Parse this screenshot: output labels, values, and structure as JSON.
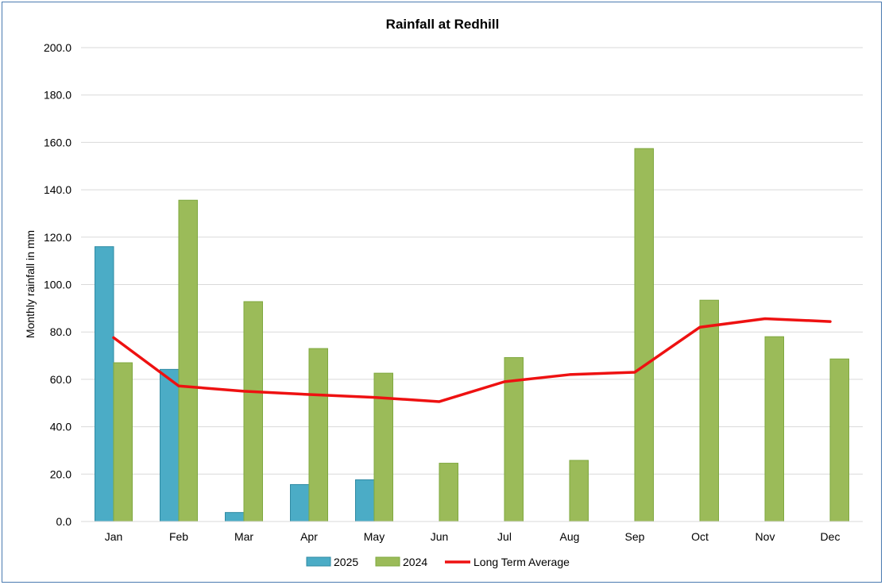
{
  "chart_data": {
    "type": "bar",
    "title": "Rainfall at Redhill",
    "xlabel": "",
    "ylabel": "Monthly rainfall in mm",
    "ylim": [
      0,
      200
    ],
    "yticks": [
      "0.0",
      "20.0",
      "40.0",
      "60.0",
      "80.0",
      "100.0",
      "120.0",
      "140.0",
      "160.0",
      "180.0",
      "200.0"
    ],
    "categories": [
      "Jan",
      "Feb",
      "Mar",
      "Apr",
      "May",
      "Jun",
      "Jul",
      "Aug",
      "Sep",
      "Oct",
      "Nov",
      "Dec"
    ],
    "series": [
      {
        "name": "2025",
        "type": "bar",
        "color": "#4bacc6",
        "values": [
          116.0,
          64.2,
          3.8,
          15.6,
          17.6,
          null,
          null,
          null,
          null,
          null,
          null,
          null
        ]
      },
      {
        "name": "2024",
        "type": "bar",
        "color": "#9bbb59",
        "values": [
          67.0,
          135.6,
          92.8,
          73.0,
          62.6,
          24.6,
          69.2,
          25.8,
          157.4,
          93.4,
          78.0,
          68.6
        ]
      },
      {
        "name": "Long Term Average",
        "type": "line",
        "color": "#ee1111",
        "values": [
          77.6,
          57.2,
          55.0,
          53.6,
          52.4,
          50.6,
          59.0,
          62.0,
          63.0,
          82.0,
          85.6,
          84.4
        ]
      }
    ],
    "grid": true,
    "legend": "bottom"
  }
}
